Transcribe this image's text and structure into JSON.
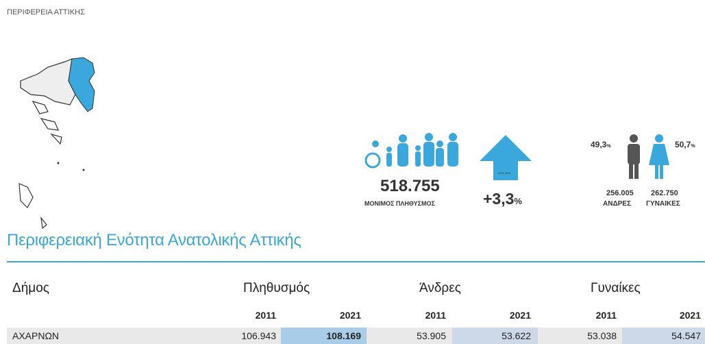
{
  "header": {
    "title": "ΠΕΡΙΦΕΡΕΙΑ ΑΤΤΙΚΗΣ"
  },
  "stats": {
    "population": "518.755",
    "population_label": "ΜΟΝΙΜΟΣ ΠΛΗΘΥΣΜΟΣ",
    "period": "2011-2021",
    "change": "+3,3",
    "change_unit": "%",
    "men_share": "49,3",
    "men_share_unit": "%",
    "women_share": "50,7",
    "women_share_unit": "%",
    "men": "256.005",
    "men_label": "ΑΝΔΡΕΣ",
    "women": "262.750",
    "women_label": "ΓΥΝΑΙΚΕΣ"
  },
  "section": {
    "title": "Περιφερειακή Ενότητα Ανατολικής Αττικής"
  },
  "table": {
    "columns": [
      "Δήμος",
      "Πληθυσμός",
      "Άνδρες",
      "Γυναίκες"
    ],
    "years": [
      "2011",
      "2021",
      "2011",
      "2021",
      "2011",
      "2021"
    ],
    "rows": [
      [
        "ΑΧΑΡΝΩΝ",
        "106.943",
        "108.169",
        "53.905",
        "53.622",
        "53.038",
        "54.547"
      ]
    ]
  }
}
